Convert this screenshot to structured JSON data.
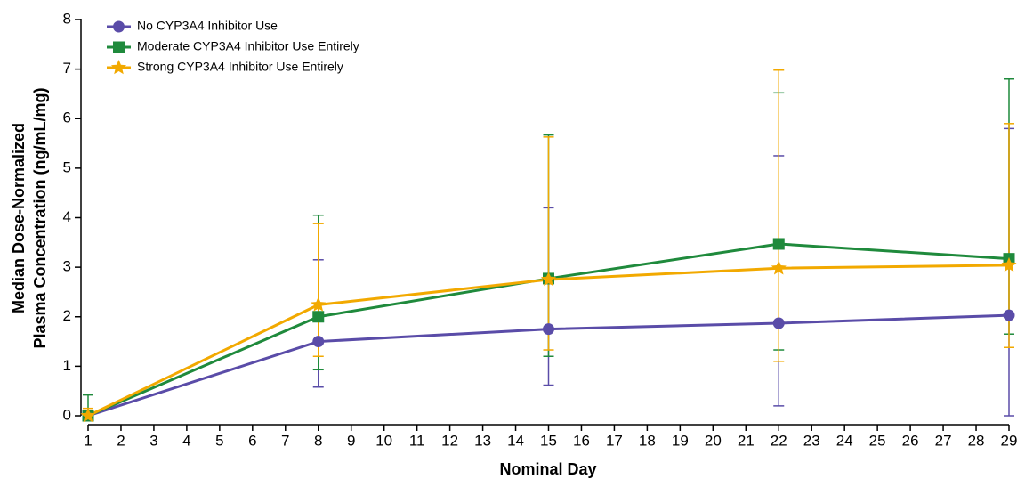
{
  "chart_data": {
    "type": "line",
    "xlabel": "Nominal Day",
    "ylabel": [
      "Median Dose-Normalized",
      "Plasma Concentration (ng/mL/mg)"
    ],
    "x": [
      1,
      8,
      15,
      22,
      29
    ],
    "xlim": [
      1,
      29
    ],
    "xticks": [
      1,
      2,
      3,
      4,
      5,
      6,
      7,
      8,
      9,
      10,
      11,
      12,
      13,
      14,
      15,
      16,
      17,
      18,
      19,
      20,
      21,
      22,
      23,
      24,
      25,
      26,
      27,
      28,
      29
    ],
    "ylim": [
      0,
      8
    ],
    "yticks": [
      0,
      1,
      2,
      3,
      4,
      5,
      6,
      7,
      8
    ],
    "legend": "top-left",
    "series": [
      {
        "name": "No CYP3A4 Inhibitor Use",
        "color": "#5a4ca8",
        "marker": "circle",
        "values": [
          0,
          1.5,
          1.75,
          1.87,
          2.03
        ],
        "upper": [
          0,
          3.15,
          4.2,
          5.25,
          5.8
        ],
        "lower": [
          0,
          0.58,
          0.62,
          0.2,
          0
        ]
      },
      {
        "name": "Moderate CYP3A4 Inhibitor Use Entirely",
        "color": "#1f8a3c",
        "marker": "square",
        "values": [
          0,
          2.0,
          2.77,
          3.47,
          3.17
        ],
        "upper": [
          0.42,
          4.05,
          5.67,
          6.52,
          6.8
        ],
        "lower": [
          0,
          0.93,
          1.2,
          1.33,
          1.65
        ]
      },
      {
        "name": "Strong CYP3A4 Inhibitor Use Entirely",
        "color": "#f2a900",
        "marker": "star",
        "values": [
          0,
          2.24,
          2.75,
          2.98,
          3.04
        ],
        "upper": [
          0.15,
          3.88,
          5.63,
          6.98,
          5.9
        ],
        "lower": [
          0,
          1.2,
          1.33,
          1.1,
          1.38
        ]
      }
    ]
  }
}
